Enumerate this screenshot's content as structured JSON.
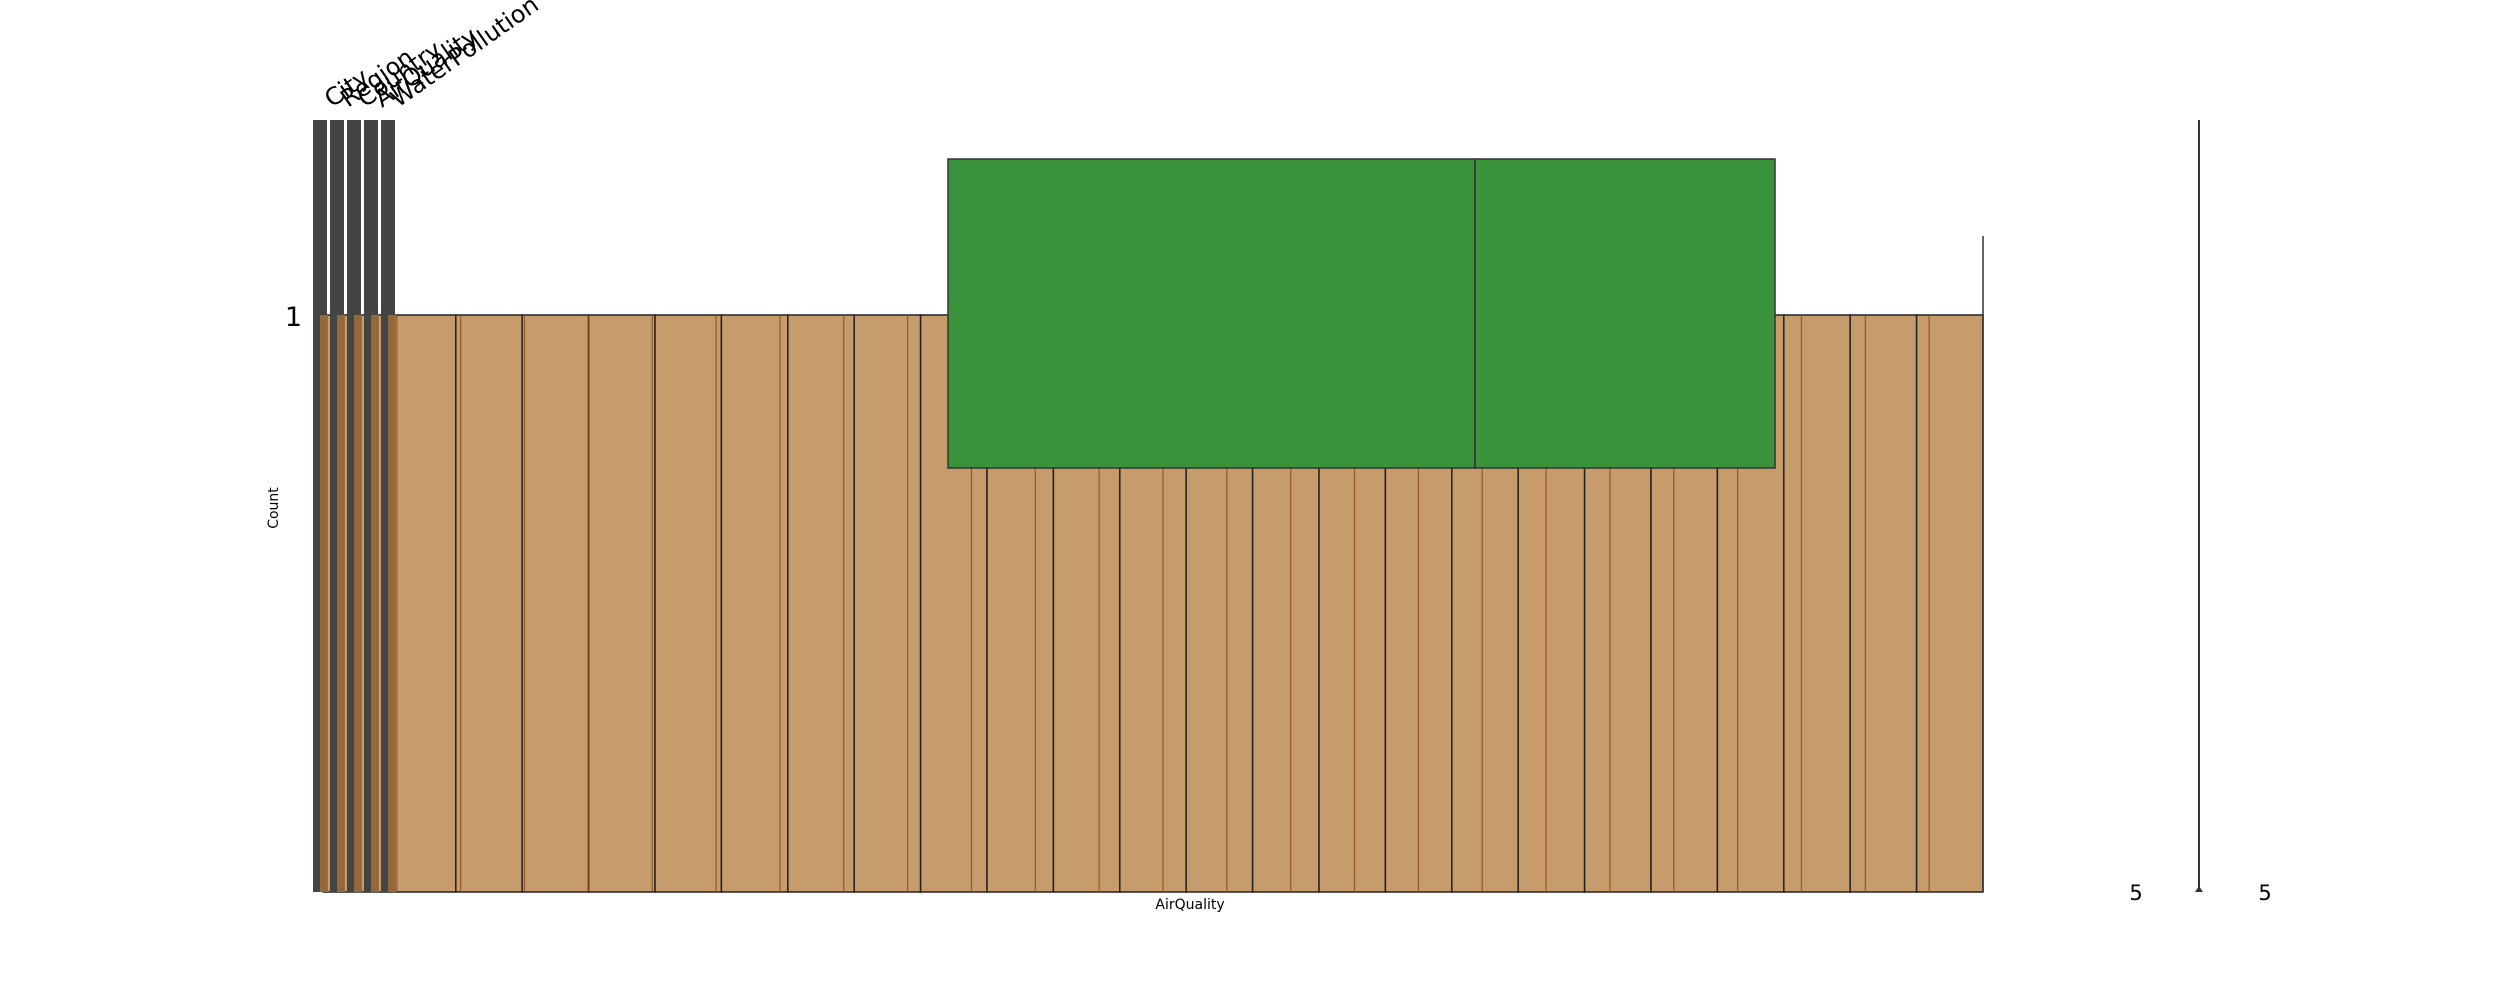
{
  "chart_data": {
    "type": "bar",
    "xlabel": "AirQuality",
    "ylabel": "Count",
    "column_headers": [
      "City",
      "Region",
      "Country",
      "AirQuality",
      "WaterPollution"
    ],
    "y_tick": 1,
    "right_ticks": [
      "5",
      "5"
    ],
    "hist": {
      "bins": 25,
      "values": [
        1,
        1,
        1,
        1,
        1,
        1,
        1,
        1,
        1,
        1,
        1,
        1,
        1,
        1,
        1,
        1,
        1,
        1,
        1,
        1,
        1,
        1,
        1,
        1,
        1
      ],
      "ylim": [
        0,
        1.6
      ]
    },
    "overlay_rows": 2,
    "colors": {
      "hist": "#c69c6d",
      "hist_edge": "#222222",
      "overlay_lines": "#8b4513",
      "header_bars": "#444444",
      "box": "#3a923a",
      "box_edge": "#333333",
      "spine": "#333333"
    }
  }
}
